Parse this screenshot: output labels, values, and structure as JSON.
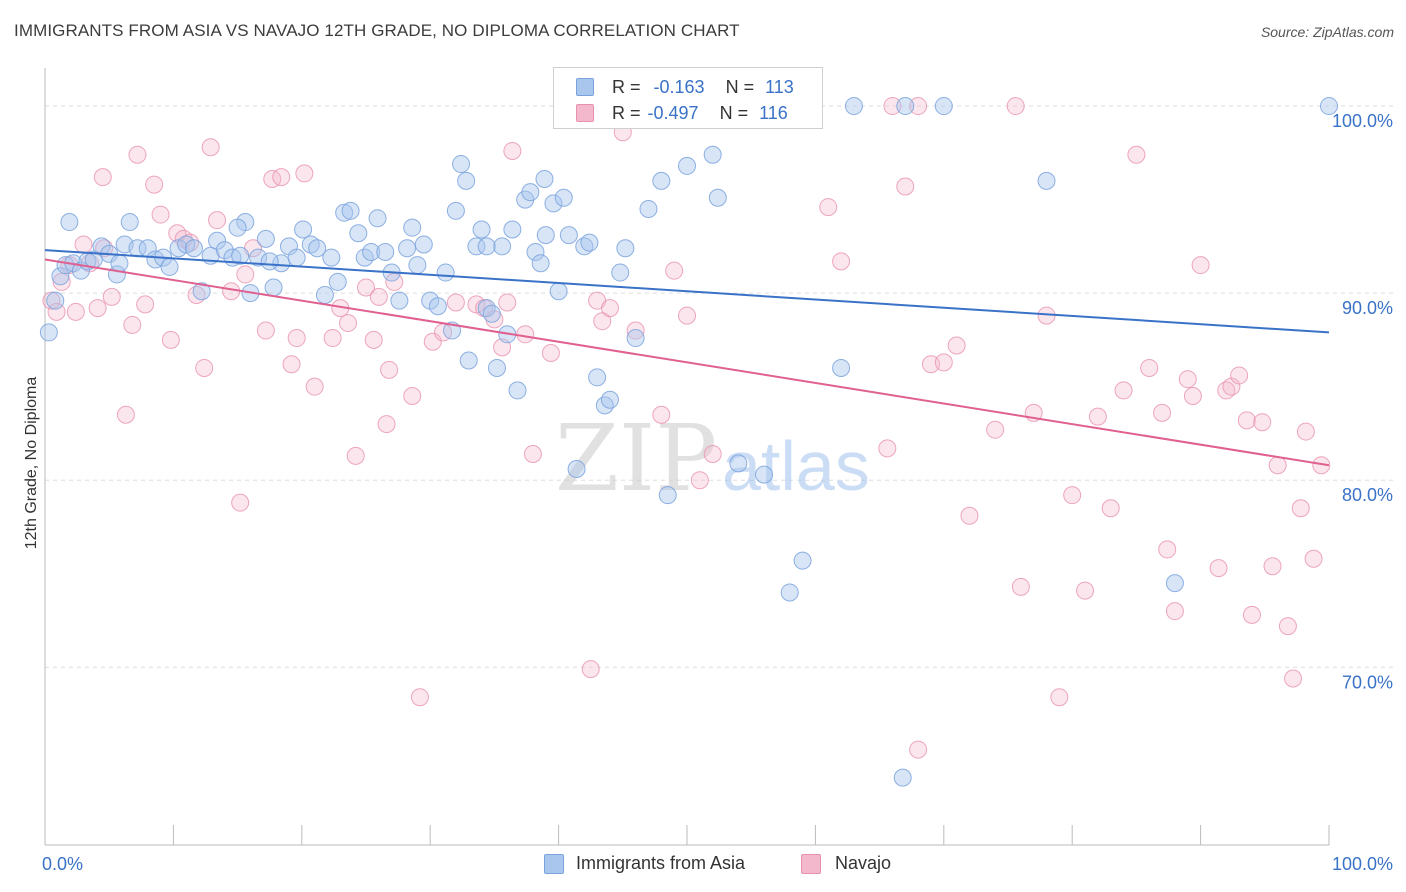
{
  "title": "IMMIGRANTS FROM ASIA VS NAVAJO 12TH GRADE, NO DIPLOMA CORRELATION CHART",
  "source": "Source: ZipAtlas.com",
  "watermark": {
    "zip": "ZIP",
    "atlas": "atlas"
  },
  "colors": {
    "blue": "#3a72c8",
    "pink": "#e06090",
    "blue_fill": "#a9c6ee",
    "pink_fill": "#f4b8cc",
    "grid": "#dddddd"
  },
  "legend": {
    "rows": [
      {
        "r_label": "R =",
        "r_value": "-0.163",
        "n_label": "N =",
        "n_value": "113"
      },
      {
        "r_label": "R =",
        "r_value": "-0.497",
        "n_label": "N =",
        "n_value": "116"
      }
    ]
  },
  "bottom_legend": [
    "Immigrants from Asia",
    "Navajo"
  ],
  "chart_data": {
    "type": "scatter",
    "title": "IMMIGRANTS FROM ASIA VS NAVAJO 12TH GRADE, NO DIPLOMA CORRELATION CHART",
    "xlabel": "",
    "ylabel": "12th Grade, No Diploma",
    "xlim": [
      0,
      100
    ],
    "ylim": [
      60.5,
      101.5
    ],
    "x_tick_labels": [
      "0.0%",
      "100.0%"
    ],
    "y_ticks": [
      70,
      80,
      90,
      100
    ],
    "y_tick_labels": [
      "70.0%",
      "80.0%",
      "90.0%",
      "100.0%"
    ],
    "grid": true,
    "legend_position": "top-center",
    "series": [
      {
        "name": "Immigrants from Asia",
        "color": "#a9c6ee",
        "r": -0.163,
        "n": 113,
        "trend": {
          "x": [
            0,
            100
          ],
          "y": [
            92.3,
            87.9
          ]
        },
        "points": [
          [
            0.3,
            87.9
          ],
          [
            0.8,
            89.6
          ],
          [
            1.2,
            90.9
          ],
          [
            1.6,
            91.5
          ],
          [
            2.2,
            91.6
          ],
          [
            2.8,
            91.2
          ],
          [
            3.3,
            91.7
          ],
          [
            3.8,
            91.8
          ],
          [
            4.4,
            92.5
          ],
          [
            5.0,
            92.1
          ],
          [
            5.6,
            91.0
          ],
          [
            6.2,
            92.6
          ],
          [
            6.6,
            93.8
          ],
          [
            7.2,
            92.4
          ],
          [
            8.0,
            92.4
          ],
          [
            8.6,
            91.8
          ],
          [
            9.2,
            91.9
          ],
          [
            9.7,
            91.4
          ],
          [
            10.4,
            92.4
          ],
          [
            11.0,
            92.6
          ],
          [
            11.6,
            92.4
          ],
          [
            12.2,
            90.1
          ],
          [
            12.9,
            92.0
          ],
          [
            13.4,
            92.8
          ],
          [
            14.0,
            92.3
          ],
          [
            14.6,
            91.9
          ],
          [
            15.2,
            92.0
          ],
          [
            15.6,
            93.8
          ],
          [
            16.0,
            90.0
          ],
          [
            16.6,
            91.9
          ],
          [
            17.2,
            92.9
          ],
          [
            17.8,
            90.3
          ],
          [
            18.4,
            91.6
          ],
          [
            19.0,
            92.5
          ],
          [
            19.6,
            91.9
          ],
          [
            20.1,
            93.4
          ],
          [
            20.7,
            92.6
          ],
          [
            21.2,
            92.4
          ],
          [
            21.8,
            89.9
          ],
          [
            22.3,
            91.9
          ],
          [
            22.8,
            90.6
          ],
          [
            23.3,
            94.3
          ],
          [
            23.8,
            94.4
          ],
          [
            24.4,
            93.2
          ],
          [
            24.9,
            91.9
          ],
          [
            25.4,
            92.2
          ],
          [
            25.9,
            94.0
          ],
          [
            26.5,
            92.2
          ],
          [
            27.0,
            91.1
          ],
          [
            27.6,
            89.6
          ],
          [
            28.2,
            92.4
          ],
          [
            28.6,
            93.5
          ],
          [
            29.0,
            91.5
          ],
          [
            29.5,
            92.6
          ],
          [
            30.0,
            89.6
          ],
          [
            30.6,
            89.3
          ],
          [
            31.2,
            91.1
          ],
          [
            31.7,
            88.0
          ],
          [
            32.0,
            94.4
          ],
          [
            32.4,
            96.9
          ],
          [
            32.8,
            96.0
          ],
          [
            33.0,
            86.4
          ],
          [
            33.6,
            92.5
          ],
          [
            34.0,
            93.4
          ],
          [
            34.4,
            89.2
          ],
          [
            34.8,
            88.9
          ],
          [
            35.2,
            86.0
          ],
          [
            35.6,
            92.5
          ],
          [
            36.0,
            87.8
          ],
          [
            36.4,
            93.4
          ],
          [
            36.8,
            84.8
          ],
          [
            37.4,
            95.0
          ],
          [
            37.8,
            95.4
          ],
          [
            38.2,
            92.2
          ],
          [
            38.6,
            91.6
          ],
          [
            39.0,
            93.1
          ],
          [
            39.6,
            94.8
          ],
          [
            40.0,
            90.1
          ],
          [
            40.4,
            95.1
          ],
          [
            40.8,
            93.1
          ],
          [
            41.4,
            80.6
          ],
          [
            42.0,
            92.5
          ],
          [
            42.4,
            92.7
          ],
          [
            43.0,
            85.5
          ],
          [
            43.6,
            84.0
          ],
          [
            44.0,
            84.3
          ],
          [
            44.8,
            91.1
          ],
          [
            45.2,
            92.4
          ],
          [
            46.0,
            87.6
          ],
          [
            47.0,
            94.5
          ],
          [
            48.0,
            96.0
          ],
          [
            48.5,
            79.2
          ],
          [
            50.0,
            96.8
          ],
          [
            52.0,
            97.4
          ],
          [
            52.4,
            95.1
          ],
          [
            54.0,
            80.9
          ],
          [
            56.0,
            80.3
          ],
          [
            58.0,
            74.0
          ],
          [
            59.0,
            75.7
          ],
          [
            62.0,
            86.0
          ],
          [
            63.0,
            100.0
          ],
          [
            66.8,
            64.1
          ],
          [
            67.0,
            100.0
          ],
          [
            70.0,
            100.0
          ],
          [
            78.0,
            96.0
          ],
          [
            88.0,
            74.5
          ],
          [
            100.0,
            100.0
          ],
          [
            1.9,
            93.8
          ],
          [
            5.8,
            91.6
          ],
          [
            15.0,
            93.5
          ],
          [
            17.5,
            91.7
          ],
          [
            34.4,
            92.5
          ],
          [
            38.9,
            96.1
          ]
        ]
      },
      {
        "name": "Navajo",
        "color": "#f4b8cc",
        "r": -0.497,
        "n": 116,
        "trend": {
          "x": [
            0,
            100
          ],
          "y": [
            91.8,
            80.8
          ]
        },
        "points": [
          [
            0.5,
            89.6
          ],
          [
            0.9,
            89.0
          ],
          [
            1.3,
            90.6
          ],
          [
            1.9,
            91.5
          ],
          [
            2.4,
            89.0
          ],
          [
            3.0,
            92.6
          ],
          [
            3.5,
            91.6
          ],
          [
            4.1,
            89.2
          ],
          [
            4.6,
            92.4
          ],
          [
            4.5,
            96.2
          ],
          [
            5.2,
            89.8
          ],
          [
            6.3,
            83.5
          ],
          [
            6.8,
            88.3
          ],
          [
            7.2,
            97.4
          ],
          [
            7.8,
            89.4
          ],
          [
            8.5,
            95.8
          ],
          [
            9.0,
            94.2
          ],
          [
            9.8,
            87.5
          ],
          [
            10.3,
            93.2
          ],
          [
            10.8,
            92.9
          ],
          [
            11.3,
            92.7
          ],
          [
            11.8,
            89.9
          ],
          [
            12.4,
            86.0
          ],
          [
            12.9,
            97.8
          ],
          [
            13.4,
            93.9
          ],
          [
            14.5,
            90.1
          ],
          [
            15.2,
            78.8
          ],
          [
            15.6,
            91.0
          ],
          [
            16.2,
            92.4
          ],
          [
            17.2,
            88.0
          ],
          [
            17.7,
            96.1
          ],
          [
            18.4,
            96.2
          ],
          [
            19.2,
            86.2
          ],
          [
            19.6,
            87.6
          ],
          [
            20.2,
            96.4
          ],
          [
            21.0,
            85.0
          ],
          [
            22.4,
            87.6
          ],
          [
            23.0,
            89.2
          ],
          [
            23.6,
            88.4
          ],
          [
            24.2,
            81.3
          ],
          [
            25.0,
            90.3
          ],
          [
            25.6,
            87.5
          ],
          [
            26.0,
            89.8
          ],
          [
            26.6,
            83.0
          ],
          [
            26.8,
            85.9
          ],
          [
            27.2,
            90.6
          ],
          [
            28.6,
            84.5
          ],
          [
            29.2,
            68.4
          ],
          [
            30.2,
            87.4
          ],
          [
            31.0,
            87.9
          ],
          [
            32.0,
            89.5
          ],
          [
            33.6,
            89.4
          ],
          [
            34.2,
            89.2
          ],
          [
            35.0,
            88.6
          ],
          [
            35.6,
            87.1
          ],
          [
            36.0,
            89.5
          ],
          [
            36.4,
            97.6
          ],
          [
            37.4,
            87.8
          ],
          [
            38.0,
            81.4
          ],
          [
            39.4,
            86.8
          ],
          [
            42.5,
            69.9
          ],
          [
            43.0,
            89.6
          ],
          [
            43.4,
            88.5
          ],
          [
            44.0,
            89.2
          ],
          [
            45.0,
            98.6
          ],
          [
            46.0,
            88.0
          ],
          [
            48.0,
            83.5
          ],
          [
            49.0,
            91.2
          ],
          [
            50.0,
            88.8
          ],
          [
            51.0,
            80.0
          ],
          [
            52.0,
            81.4
          ],
          [
            61.0,
            94.6
          ],
          [
            62.0,
            91.7
          ],
          [
            65.6,
            81.7
          ],
          [
            67.0,
            95.7
          ],
          [
            68.0,
            65.6
          ],
          [
            69.0,
            86.2
          ],
          [
            70.0,
            86.3
          ],
          [
            71.0,
            87.2
          ],
          [
            72.0,
            78.1
          ],
          [
            74.0,
            82.7
          ],
          [
            76.0,
            74.3
          ],
          [
            77.0,
            83.6
          ],
          [
            78.0,
            88.8
          ],
          [
            79.0,
            68.4
          ],
          [
            80.0,
            79.2
          ],
          [
            81.0,
            74.1
          ],
          [
            82.0,
            83.4
          ],
          [
            83.0,
            78.5
          ],
          [
            84.0,
            84.8
          ],
          [
            85.0,
            97.4
          ],
          [
            86.0,
            86.0
          ],
          [
            87.0,
            83.6
          ],
          [
            87.4,
            76.3
          ],
          [
            88.0,
            73.0
          ],
          [
            89.0,
            85.4
          ],
          [
            89.4,
            84.5
          ],
          [
            90.0,
            91.5
          ],
          [
            91.4,
            75.3
          ],
          [
            92.0,
            84.8
          ],
          [
            92.4,
            85.0
          ],
          [
            93.0,
            85.6
          ],
          [
            93.6,
            83.2
          ],
          [
            94.0,
            72.8
          ],
          [
            94.8,
            83.1
          ],
          [
            95.6,
            75.4
          ],
          [
            96.0,
            80.8
          ],
          [
            96.8,
            72.2
          ],
          [
            97.2,
            69.4
          ],
          [
            97.8,
            78.5
          ],
          [
            98.2,
            82.6
          ],
          [
            98.8,
            75.8
          ],
          [
            99.4,
            80.8
          ],
          [
            66.0,
            100.0
          ],
          [
            68.0,
            100.0
          ],
          [
            75.6,
            100.0
          ],
          [
            50.6,
            100.0
          ]
        ]
      }
    ]
  }
}
